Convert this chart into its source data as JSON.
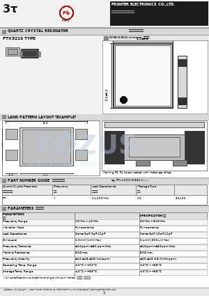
{
  "bg_color": "#f0f0f0",
  "white": "#ffffff",
  "dark": "#111111",
  "mid_gray": "#888888",
  "light_gray": "#cccccc",
  "dark_gray": "#444444",
  "header_dark": "#1a1a1a",
  "watermark": "#b8cfe0",
  "watermark2": "#c5d5e5",
  "red": "#cc0000",
  "section_header_bg": "#d0d0d0",
  "table_line": "#999999",
  "row_alt": "#eeeeee"
}
